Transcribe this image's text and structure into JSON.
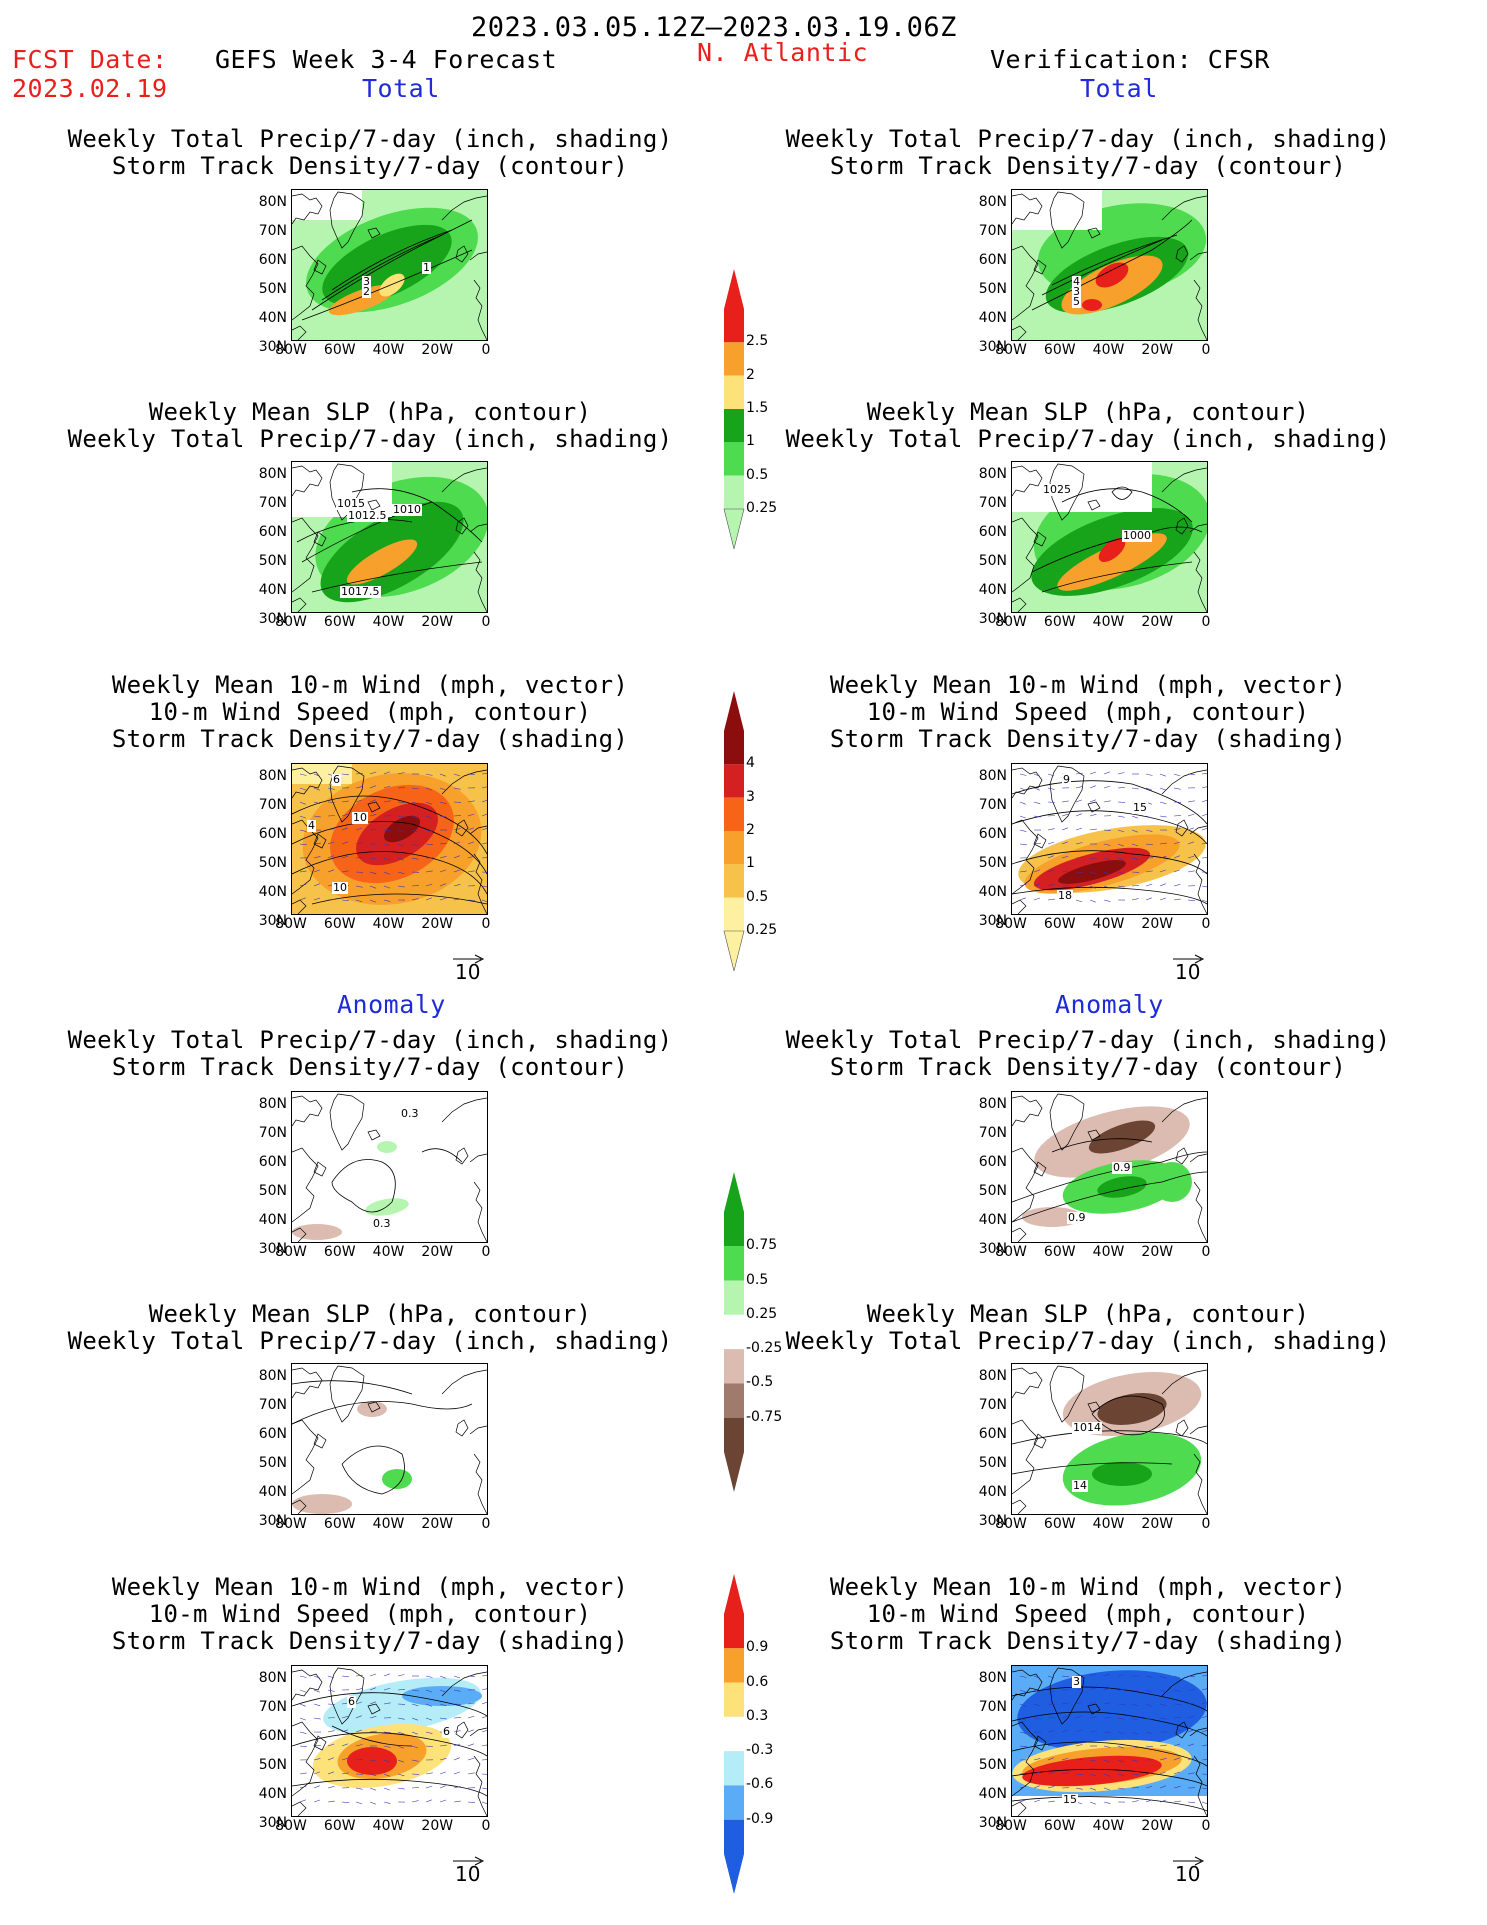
{
  "header": {
    "date_range": "2023.03.05.12Z–2023.03.19.06Z",
    "fcst_label": "FCST Date:",
    "fcst_date": "2023.02.19",
    "model_title": "GEFS Week 3-4 Forecast",
    "region": "N. Atlantic",
    "verification": "Verification: CFSR"
  },
  "sections": {
    "total": "Total",
    "anomaly": "Anomaly"
  },
  "titles": {
    "precip_storm": [
      "Weekly Total Precip/7-day (inch, shading)",
      "Storm Track Density/7-day (contour)"
    ],
    "slp_precip": [
      "Weekly Mean SLP (hPa, contour)",
      "Weekly Total Precip/7-day (inch, shading)"
    ],
    "wind_storm": [
      "Weekly Mean 10-m Wind (mph, vector)",
      "10-m Wind Speed (mph, contour)",
      "Storm Track Density/7-day (shading)"
    ]
  },
  "axes": {
    "lat_ticks": [
      "80N",
      "70N",
      "60N",
      "50N",
      "40N",
      "30N"
    ],
    "lon_ticks": [
      "80W",
      "60W",
      "40W",
      "20W",
      "0"
    ]
  },
  "vector_ref": "10",
  "colorbars": {
    "precip_total": {
      "labels": [
        "2.5",
        "2",
        "1.5",
        "1",
        "0.5",
        "0.25"
      ],
      "colors": [
        "#e8201c",
        "#f7a02c",
        "#fde27a",
        "#17a31a",
        "#4fdb4f",
        "#b6f5b0"
      ]
    },
    "storm_total": {
      "labels": [
        "4",
        "3",
        "2",
        "1",
        "0.5",
        "0.25"
      ],
      "colors": [
        "#8b0d0d",
        "#d42020",
        "#f76418",
        "#f7a02c",
        "#f7c24a",
        "#fdf0a0"
      ]
    },
    "precip_anom": {
      "labels": [
        "0.75",
        "0.5",
        "0.25",
        "-0.25",
        "-0.5",
        "-0.75"
      ],
      "colors": [
        "#17a31a",
        "#4fdb4f",
        "#b6f5b0",
        "#ffffff",
        "#dcbcb0",
        "#a07a6c",
        "#6b4434"
      ]
    },
    "storm_anom": {
      "labels": [
        "0.9",
        "0.6",
        "0.3",
        "-0.3",
        "-0.6",
        "-0.9"
      ],
      "colors": [
        "#e8201c",
        "#f7a02c",
        "#fde27a",
        "#ffffff",
        "#b4ecf7",
        "#5aacf7",
        "#1f5ee0"
      ]
    },
    "colorbar_unit": ""
  },
  "map_labels": {
    "p1": [
      "3",
      "2",
      "1"
    ],
    "p2": [
      "1015",
      "1012.5",
      "1010",
      "1017.5"
    ],
    "p3": [
      "10",
      "4",
      "6",
      "10"
    ],
    "p4": [
      "4",
      "3",
      "5"
    ],
    "p5": [
      "1025",
      "1000"
    ],
    "p6": [
      "9",
      "15",
      "18"
    ],
    "a1": [
      "0.3",
      "0.3"
    ],
    "a4": [
      "0.9",
      "0.9"
    ],
    "a5": [
      "1014",
      "14"
    ],
    "a6": [
      "6",
      "6",
      "15",
      "3"
    ]
  }
}
